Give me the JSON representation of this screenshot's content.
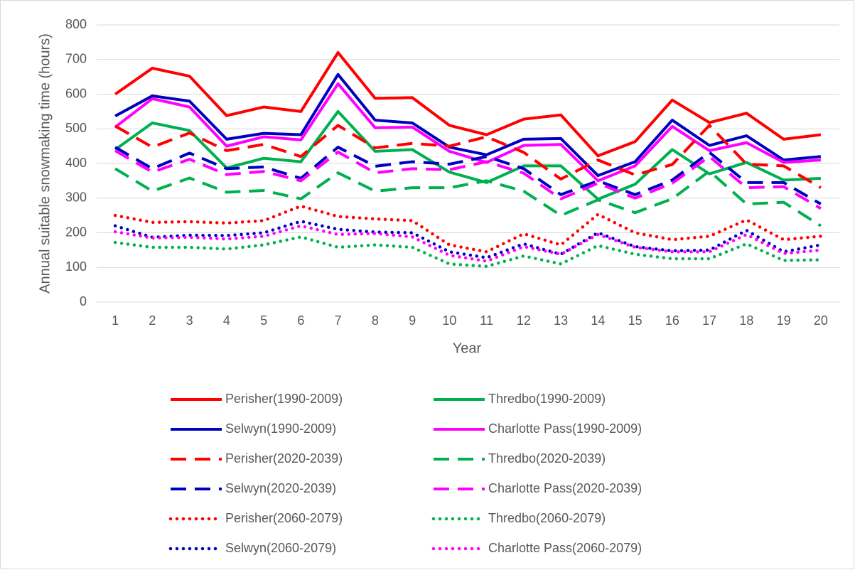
{
  "chart_data": {
    "type": "line",
    "xlabel": "Year",
    "ylabel": "Annual suitable snowmaking time (hours)",
    "x": [
      1,
      2,
      3,
      4,
      5,
      6,
      7,
      8,
      9,
      10,
      11,
      12,
      13,
      14,
      15,
      16,
      17,
      18,
      19,
      20
    ],
    "xlim": [
      0.5,
      20.5
    ],
    "xticks": [
      1,
      2,
      3,
      4,
      5,
      6,
      7,
      8,
      9,
      10,
      11,
      12,
      13,
      14,
      15,
      16,
      17,
      18,
      19,
      20
    ],
    "ylim": [
      0,
      800
    ],
    "yticks": [
      0,
      100,
      200,
      300,
      400,
      500,
      600,
      700,
      800
    ],
    "grid": true,
    "legend": "bottom",
    "series": [
      {
        "name": "Perisher(1990-2009)",
        "color": "#ff0000",
        "style": "solid",
        "values": [
          600,
          675,
          652,
          538,
          563,
          550,
          720,
          588,
          590,
          510,
          483,
          528,
          540,
          422,
          463,
          583,
          518,
          545,
          470,
          483
        ]
      },
      {
        "name": "Thredbo(1990-2009)",
        "color": "#00b050",
        "style": "solid",
        "values": [
          440,
          517,
          495,
          387,
          415,
          405,
          550,
          435,
          440,
          375,
          345,
          393,
          393,
          297,
          340,
          440,
          370,
          403,
          352,
          357
        ]
      },
      {
        "name": "Selwyn(1990-2009)",
        "color": "#0000c0",
        "style": "solid",
        "values": [
          537,
          595,
          580,
          470,
          487,
          483,
          657,
          525,
          517,
          447,
          425,
          470,
          472,
          365,
          405,
          525,
          452,
          480,
          410,
          420
        ]
      },
      {
        "name": "Charlotte Pass(1990-2009)",
        "color": "#ff00ff",
        "style": "solid",
        "values": [
          505,
          587,
          563,
          450,
          477,
          468,
          630,
          503,
          505,
          435,
          403,
          452,
          455,
          350,
          393,
          507,
          437,
          460,
          403,
          410
        ]
      },
      {
        "name": "Perisher(2020-2039)",
        "color": "#ff0000",
        "style": "dashed",
        "values": [
          508,
          447,
          488,
          437,
          455,
          420,
          510,
          445,
          458,
          450,
          477,
          432,
          355,
          410,
          367,
          397,
          510,
          398,
          393,
          330
        ]
      },
      {
        "name": "Thredbo(2020-2039)",
        "color": "#00b050",
        "style": "dashed",
        "values": [
          385,
          320,
          358,
          317,
          322,
          298,
          373,
          320,
          330,
          330,
          350,
          320,
          250,
          295,
          258,
          298,
          378,
          283,
          288,
          220
        ]
      },
      {
        "name": "Selwyn(2020-2039)",
        "color": "#0000c0",
        "style": "dashed",
        "values": [
          447,
          385,
          430,
          385,
          390,
          357,
          447,
          392,
          405,
          398,
          420,
          385,
          310,
          350,
          310,
          352,
          432,
          345,
          345,
          283
        ]
      },
      {
        "name": "Charlotte Pass(2020-2039)",
        "color": "#ff00ff",
        "style": "dashed",
        "values": [
          437,
          375,
          412,
          368,
          377,
          350,
          433,
          373,
          385,
          382,
          405,
          372,
          298,
          343,
          300,
          343,
          420,
          330,
          333,
          270
        ]
      },
      {
        "name": "Perisher(2060-2079)",
        "color": "#ff0000",
        "style": "dotted",
        "values": [
          250,
          230,
          232,
          228,
          235,
          277,
          247,
          240,
          235,
          165,
          145,
          197,
          165,
          253,
          200,
          180,
          190,
          237,
          180,
          190
        ]
      },
      {
        "name": "Thredbo(2060-2079)",
        "color": "#00b050",
        "style": "dotted",
        "values": [
          172,
          158,
          158,
          153,
          165,
          188,
          158,
          165,
          158,
          110,
          103,
          133,
          110,
          163,
          138,
          125,
          125,
          168,
          120,
          122
        ]
      },
      {
        "name": "Selwyn(2060-2079)",
        "color": "#0000c0",
        "style": "dotted",
        "values": [
          220,
          187,
          193,
          192,
          200,
          233,
          210,
          202,
          200,
          145,
          128,
          168,
          138,
          200,
          160,
          148,
          150,
          207,
          145,
          165
        ]
      },
      {
        "name": "Charlotte Pass(2060-2079)",
        "color": "#ff00ff",
        "style": "dotted",
        "values": [
          203,
          185,
          187,
          182,
          190,
          220,
          195,
          198,
          188,
          135,
          118,
          160,
          138,
          195,
          158,
          145,
          145,
          195,
          140,
          150
        ]
      }
    ]
  }
}
